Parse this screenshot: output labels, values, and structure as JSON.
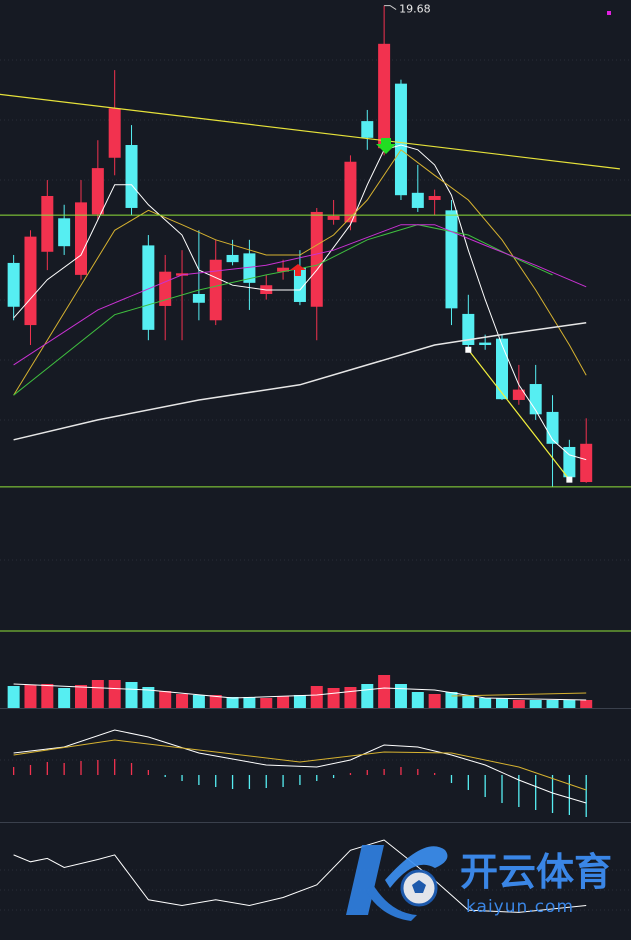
{
  "chart_data": [
    {
      "type": "candlestick",
      "up_color": "#f2324f",
      "down_color": "#56eef2",
      "x": [
        1,
        2,
        3,
        4,
        5,
        6,
        7,
        8,
        9,
        10,
        11,
        12,
        13,
        14,
        15,
        16,
        17,
        18,
        19,
        20,
        21,
        22,
        23,
        24,
        25,
        26,
        27,
        28,
        29,
        30,
        31,
        32,
        33,
        34,
        35
      ],
      "xlim": [
        0.19,
        37.66
      ],
      "ylim": [
        13.6,
        19.75
      ],
      "candles": {
        "open": [
          16.45,
          15.67,
          16.59,
          17.01,
          16.3,
          17.06,
          17.77,
          17.93,
          16.67,
          15.91,
          16.29,
          16.06,
          15.73,
          16.55,
          16.57,
          16.06,
          16.34,
          16.39,
          15.9,
          16.99,
          16.96,
          18.23,
          17.89,
          18.7,
          17.33,
          17.24,
          17.11,
          15.81,
          15.45,
          15.5,
          14.73,
          14.93,
          14.58,
          14.14,
          13.7
        ],
        "high": [
          16.55,
          16.86,
          17.49,
          17.18,
          17.49,
          17.99,
          18.87,
          18.18,
          16.8,
          16.55,
          16.61,
          16.86,
          16.74,
          16.74,
          16.74,
          16.3,
          16.49,
          16.61,
          17.14,
          17.24,
          17.8,
          18.37,
          19.68,
          18.75,
          17.68,
          17.37,
          17.24,
          16.05,
          15.55,
          15.55,
          15.17,
          15.17,
          14.79,
          14.23,
          14.5
        ],
        "low": [
          15.73,
          15.42,
          16.36,
          16.55,
          16.24,
          16.99,
          17.55,
          17.05,
          15.48,
          15.48,
          15.48,
          15.73,
          15.67,
          16.42,
          15.86,
          15.99,
          16.24,
          15.92,
          15.48,
          16.93,
          16.86,
          17.87,
          17.8,
          17.24,
          17.09,
          17.05,
          15.67,
          15.36,
          15.36,
          14.73,
          14.67,
          14.48,
          13.64,
          13.7,
          13.69
        ],
        "close": [
          15.9,
          16.78,
          17.29,
          16.66,
          17.21,
          17.64,
          18.39,
          17.14,
          15.61,
          16.34,
          16.32,
          15.95,
          16.49,
          16.46,
          16.2,
          16.17,
          16.39,
          15.96,
          17.09,
          17.04,
          17.72,
          18.02,
          19.2,
          17.3,
          17.14,
          17.29,
          15.88,
          15.42,
          15.42,
          14.74,
          14.86,
          14.55,
          14.18,
          13.76,
          14.18
        ]
      },
      "peak_label": 19.68,
      "lines": [
        {
          "color": "#ffffff",
          "width": 1,
          "x": [
            1,
            3,
            5,
            7,
            8,
            9,
            11,
            12,
            14,
            16,
            18,
            19,
            21,
            22,
            23,
            24,
            25,
            26,
            27,
            28,
            29,
            30,
            31,
            32,
            33,
            34,
            35
          ],
          "values": [
            15.76,
            16.24,
            16.55,
            17.43,
            17.43,
            17.18,
            16.8,
            16.36,
            16.17,
            16.11,
            16.11,
            16.36,
            16.93,
            17.43,
            17.87,
            17.93,
            17.87,
            17.68,
            17.3,
            16.61,
            15.99,
            15.42,
            14.92,
            14.6,
            14.23,
            14.04,
            13.98
          ]
        },
        {
          "color": "#d6b230",
          "width": 1,
          "x": [
            1,
            3,
            5,
            7,
            9,
            11,
            13,
            16,
            18,
            20,
            22,
            24,
            26,
            28,
            30,
            32,
            34,
            35
          ],
          "values": [
            14.79,
            15.48,
            16.17,
            16.86,
            17.11,
            16.93,
            16.74,
            16.55,
            16.55,
            16.8,
            17.24,
            17.87,
            17.55,
            17.24,
            16.74,
            16.11,
            15.42,
            15.04
          ]
        },
        {
          "color": "#3fbf3f",
          "width": 1,
          "x": [
            1,
            7,
            12,
            16,
            19,
            22,
            25,
            28,
            31,
            33
          ],
          "values": [
            14.79,
            15.8,
            16.11,
            16.3,
            16.42,
            16.74,
            16.93,
            16.8,
            16.49,
            16.3
          ]
        },
        {
          "color": "#c832d2",
          "width": 1,
          "x": [
            1,
            6,
            11,
            16,
            20,
            24,
            26,
            29,
            32,
            35
          ],
          "values": [
            15.17,
            15.86,
            16.3,
            16.42,
            16.61,
            16.93,
            16.93,
            16.67,
            16.42,
            16.15
          ]
        },
        {
          "color": "#e6e6e6",
          "width": 1.5,
          "x": [
            1,
            6,
            12,
            18,
            22,
            26,
            30,
            35
          ],
          "values": [
            14.23,
            14.48,
            14.73,
            14.92,
            15.17,
            15.42,
            15.55,
            15.7
          ]
        }
      ],
      "hlines": [
        {
          "value": 17.05,
          "color": "#8fe03a"
        },
        {
          "value": 13.64,
          "color": "#8fe03a"
        }
      ],
      "trendlines": [
        {
          "color": "#e6e23a",
          "x": [
            0,
            37
          ],
          "values": [
            18.57,
            17.63
          ],
          "endpoints": false
        },
        {
          "color": "#f2f03c",
          "x": [
            28,
            34
          ],
          "values": [
            15.36,
            13.73
          ],
          "endpoints": true
        }
      ]
    },
    {
      "type": "volume",
      "x": [
        1,
        2,
        3,
        4,
        5,
        6,
        7,
        8,
        9,
        10,
        11,
        12,
        13,
        14,
        15,
        16,
        17,
        18,
        19,
        20,
        21,
        22,
        23,
        24,
        25,
        26,
        27,
        28,
        29,
        30,
        31,
        32,
        33,
        34,
        35
      ],
      "xlim": [
        0.19,
        37.66
      ],
      "ylim": [
        0,
        70
      ],
      "values": [
        22,
        23,
        24,
        20,
        23,
        28,
        28,
        26,
        21,
        17,
        14,
        13,
        13,
        11,
        11,
        10,
        12,
        13,
        22,
        20,
        21,
        24,
        33,
        24,
        16,
        14,
        16,
        12,
        10,
        10,
        8,
        8,
        8,
        8,
        8
      ],
      "lines": [
        {
          "color": "#ffffff",
          "width": 1,
          "x": [
            1,
            9,
            14,
            19,
            23,
            26,
            29,
            35
          ],
          "values": [
            24,
            18,
            10,
            13,
            20,
            18,
            10,
            8
          ]
        },
        {
          "color": "#d6b230",
          "width": 1,
          "x": [
            27,
            35
          ],
          "values": [
            12,
            15
          ]
        }
      ]
    },
    {
      "type": "macd",
      "x": [
        1,
        2,
        3,
        4,
        5,
        6,
        7,
        8,
        9,
        10,
        11,
        12,
        13,
        14,
        15,
        16,
        17,
        18,
        19,
        20,
        21,
        22,
        23,
        24,
        25,
        26,
        27,
        28,
        29,
        30,
        31,
        32,
        33,
        34,
        35
      ],
      "xlim": [
        0.19,
        37.66
      ],
      "ylim": [
        -45,
        60
      ],
      "hist": [
        8,
        10,
        13,
        12,
        14,
        15,
        16,
        12,
        5,
        -2,
        -6,
        -10,
        -12,
        -14,
        -14,
        -13,
        -12,
        -10,
        -6,
        -3,
        2,
        5,
        6,
        8,
        6,
        2,
        -8,
        -15,
        -22,
        -28,
        -32,
        -35,
        -38,
        -40,
        -42
      ],
      "up_color": "#f2324f",
      "down_color": "#56eef2",
      "lines": [
        {
          "color": "#ffffff",
          "width": 1,
          "x": [
            1,
            4,
            7,
            9,
            12,
            16,
            19,
            21,
            23,
            25,
            27,
            29,
            31,
            33,
            35
          ],
          "values": [
            22,
            28,
            45,
            38,
            22,
            10,
            8,
            15,
            30,
            28,
            20,
            10,
            -5,
            -18,
            -28
          ]
        },
        {
          "color": "#d6b230",
          "width": 1,
          "x": [
            1,
            7,
            12,
            18,
            23,
            27,
            31,
            35
          ],
          "values": [
            20,
            35,
            25,
            13,
            23,
            22,
            8,
            -15
          ]
        }
      ]
    },
    {
      "type": "line",
      "xlim": [
        0.19,
        37.66
      ],
      "ylim": [
        0,
        100
      ],
      "lines": [
        {
          "color": "#ffffff",
          "width": 1,
          "x": [
            1,
            2,
            3,
            4,
            6,
            7,
            9,
            11,
            13,
            15,
            17,
            19,
            21,
            23,
            26,
            28,
            31,
            35
          ],
          "values": [
            74,
            68,
            71,
            63,
            70,
            74,
            35,
            30,
            35,
            30,
            37,
            48,
            78,
            87,
            52,
            26,
            24,
            30
          ]
        }
      ]
    }
  ],
  "watermark": {
    "brand": "开云体育",
    "site": "kaiyun.com"
  }
}
